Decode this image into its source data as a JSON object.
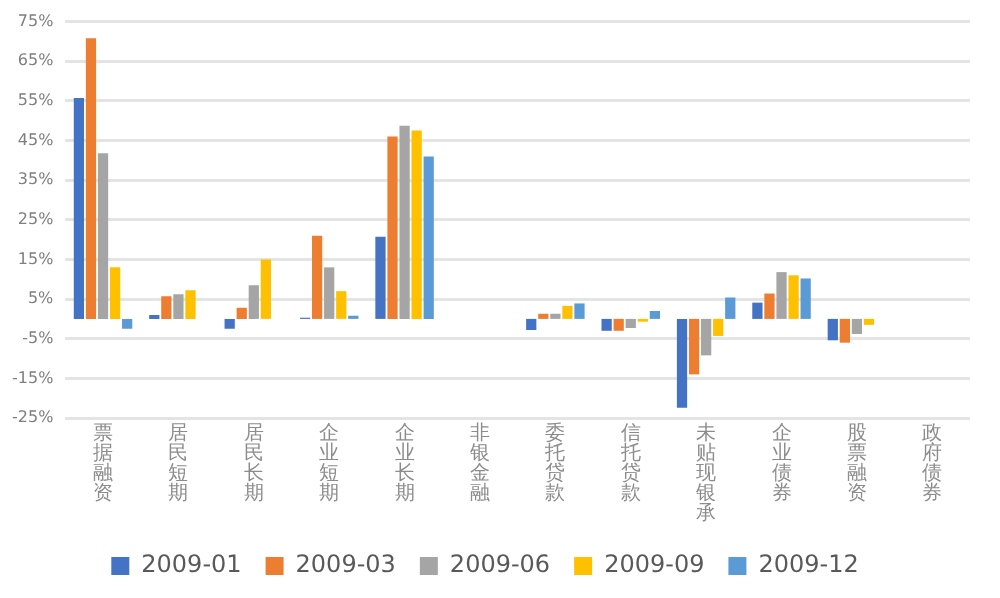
{
  "chart_data": {
    "type": "bar",
    "categories": [
      "票据融资",
      "居民短期",
      "居民长期",
      "企业短期",
      "企业长期",
      "非银金融",
      "委托贷款",
      "信托贷款",
      "未贴现银承",
      "企业债券",
      "股票融资",
      "政府债券"
    ],
    "series": [
      {
        "name": "2009-01",
        "color": "#4472c4",
        "values": [
          55.7,
          1,
          -2.5,
          0.3,
          20.7,
          null,
          -2.8,
          -3,
          -22.4,
          4.1,
          -5.4,
          null
        ]
      },
      {
        "name": "2009-03",
        "color": "#ed7d31",
        "values": [
          70.8,
          5.7,
          2.8,
          21,
          46,
          null,
          1.3,
          -3,
          -14,
          6.4,
          -6,
          null
        ]
      },
      {
        "name": "2009-06",
        "color": "#a5a5a5",
        "values": [
          41.8,
          6.2,
          8.5,
          13,
          48.7,
          null,
          1.3,
          -2.3,
          -9.2,
          11.8,
          -3.8,
          null
        ]
      },
      {
        "name": "2009-09",
        "color": "#ffc000",
        "values": [
          13,
          7.2,
          15,
          7,
          47.5,
          null,
          3.3,
          -0.7,
          -4.3,
          11,
          -1.5,
          null
        ]
      },
      {
        "name": "2009-12",
        "color": "#5b9bd5",
        "values": [
          -2.5,
          null,
          null,
          0.8,
          41,
          null,
          3.9,
          2,
          5.4,
          10.2,
          null,
          null
        ]
      }
    ],
    "ylim": [
      -25,
      75
    ],
    "yticks": [
      {
        "value": -25,
        "label": "-25%"
      },
      {
        "value": -15,
        "label": "-15%"
      },
      {
        "value": -5,
        "label": "-5%"
      },
      {
        "value": 5,
        "label": "5%"
      },
      {
        "value": 15,
        "label": "15%"
      },
      {
        "value": 25,
        "label": "25%"
      },
      {
        "value": 35,
        "label": "35%"
      },
      {
        "value": 45,
        "label": "45%"
      },
      {
        "value": 55,
        "label": "55%"
      },
      {
        "value": 65,
        "label": "65%"
      },
      {
        "value": 75,
        "label": "75%"
      }
    ],
    "grid": "y",
    "legend": "bottom"
  }
}
